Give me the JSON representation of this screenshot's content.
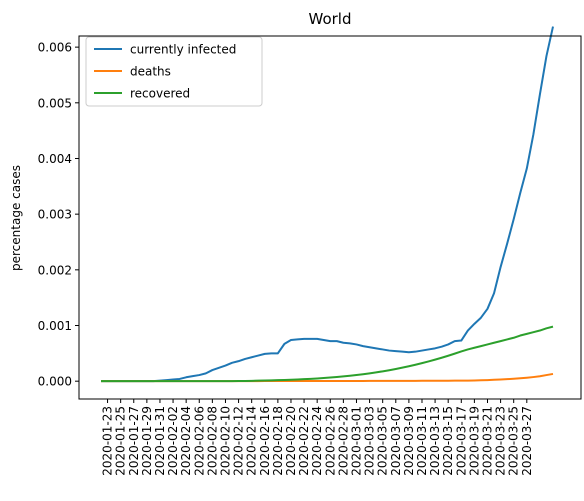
{
  "chart_data": {
    "type": "line",
    "title": "World",
    "xlabel": "",
    "ylabel": "percentage cases",
    "ylim": [
      -0.00032,
      0.0062
    ],
    "yticks": [
      "0.000",
      "0.001",
      "0.002",
      "0.003",
      "0.004",
      "0.005",
      "0.006"
    ],
    "legend_position": "upper-left",
    "grid": false,
    "x_start": "2020-01-22",
    "x_tick_labels": [
      "2020-01-23",
      "2020-01-25",
      "2020-01-27",
      "2020-01-29",
      "2020-01-31",
      "2020-02-02",
      "2020-02-04",
      "2020-02-06",
      "2020-02-08",
      "2020-02-10",
      "2020-02-12",
      "2020-02-14",
      "2020-02-16",
      "2020-02-18",
      "2020-02-20",
      "2020-02-22",
      "2020-02-24",
      "2020-02-26",
      "2020-02-28",
      "2020-03-01",
      "2020-03-03",
      "2020-03-05",
      "2020-03-07",
      "2020-03-09",
      "2020-03-11",
      "2020-03-13",
      "2020-03-15",
      "2020-03-17",
      "2020-03-19",
      "2020-03-21",
      "2020-03-23",
      "2020-03-25",
      "2020-03-27"
    ],
    "series": [
      {
        "name": "currently infected",
        "color": "#1f77b4",
        "values": [
          1e-07,
          1e-07,
          1e-07,
          2e-07,
          3e-07,
          4e-07,
          5e-07,
          7e-07,
          8e-07,
          1e-05,
          2e-05,
          3e-05,
          4e-05,
          7e-05,
          9e-05,
          0.00011,
          0.00014,
          0.0002,
          0.00024,
          0.00028,
          0.00033,
          0.00036,
          0.0004,
          0.00043,
          0.00046,
          0.00049,
          0.0005,
          0.0005,
          0.00067,
          0.00074,
          0.00075,
          0.00076,
          0.00076,
          0.00076,
          0.00074,
          0.00072,
          0.00072,
          0.00069,
          0.00068,
          0.00066,
          0.00063,
          0.00061,
          0.00059,
          0.00057,
          0.00055,
          0.00054,
          0.00053,
          0.00052,
          0.00053,
          0.00055,
          0.00057,
          0.00059,
          0.00062,
          0.00066,
          0.00072,
          0.00073,
          0.00091,
          0.00103,
          0.00114,
          0.0013,
          0.00158,
          0.00205,
          0.00247,
          0.00291,
          0.00338,
          0.00382,
          0.00443,
          0.00515,
          0.00584,
          0.00637
        ]
      },
      {
        "name": "deaths",
        "color": "#ff7f0e",
        "values": [
          2e-07,
          2e-07,
          2e-07,
          2e-07,
          3e-07,
          3e-07,
          4e-07,
          4e-07,
          5e-07,
          6e-07,
          7e-07,
          8e-07,
          9e-07,
          1e-06,
          1.1e-06,
          1.2e-06,
          1.3e-06,
          1.4e-06,
          1.5e-06,
          1.6e-06,
          1.7e-06,
          1.8e-06,
          1.9e-06,
          2e-06,
          2.1e-06,
          2.2e-06,
          2.3e-06,
          2.4e-06,
          2.5e-06,
          2.6e-06,
          2.7e-06,
          2.8e-06,
          3e-06,
          3.1e-06,
          3.3e-06,
          3.4e-06,
          3.6e-06,
          3.7e-06,
          3.9e-06,
          4.1e-06,
          4.3e-06,
          4.5e-06,
          4.7e-06,
          4.9e-06,
          5.2e-06,
          5.5e-06,
          5.8e-06,
          6.1e-06,
          6.4e-06,
          6.8e-06,
          7.2e-06,
          7.6e-06,
          8.1e-06,
          8.6e-06,
          9.1e-06,
          9.7e-06,
          1.1e-05,
          1.3e-05,
          1.6e-05,
          2e-05,
          2.5e-05,
          3e-05,
          3.6e-05,
          4.4e-05,
          5.2e-05,
          6.2e-05,
          7.4e-05,
          8.8e-05,
          0.00011,
          0.00013
        ]
      },
      {
        "name": "recovered",
        "color": "#2ca02c",
        "values": [
          1e-07,
          1e-07,
          1e-07,
          1e-07,
          1e-07,
          1e-07,
          1e-07,
          1e-07,
          1e-07,
          2e-07,
          2e-07,
          3e-07,
          4e-07,
          5e-07,
          6e-07,
          8e-07,
          1e-06,
          1.2e-06,
          1.5e-06,
          1.8e-06,
          2e-06,
          3e-06,
          4e-06,
          6e-06,
          9e-06,
          1.2e-05,
          1.5e-05,
          1.8e-05,
          2.2e-05,
          2.6e-05,
          3.1e-05,
          3.6e-05,
          4.2e-05,
          4.9e-05,
          5.7e-05,
          6.6e-05,
          7.5e-05,
          8.6e-05,
          9.8e-05,
          0.000111,
          0.000125,
          0.000141,
          0.000158,
          0.000177,
          0.000197,
          0.000219,
          0.000243,
          0.000268,
          0.000295,
          0.000324,
          0.000355,
          0.000387,
          0.000421,
          0.000457,
          0.000495,
          0.000534,
          0.00057,
          0.0006,
          0.00063,
          0.00066,
          0.00069,
          0.00072,
          0.00075,
          0.00078,
          0.00082,
          0.00085,
          0.00088,
          0.00091,
          0.00095,
          0.00098
        ]
      }
    ]
  }
}
